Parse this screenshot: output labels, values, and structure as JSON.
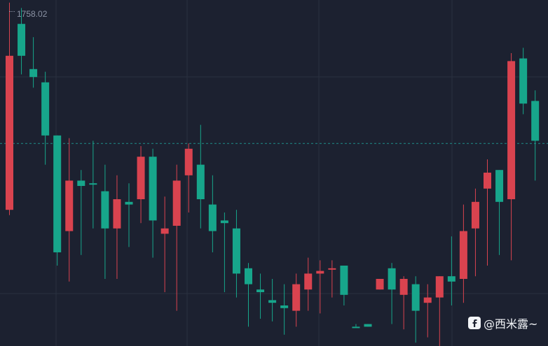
{
  "price_label": "1758.02",
  "watermark": "@西米露~",
  "colors": {
    "background": "#1c2130",
    "grid": "#2a3140",
    "up": "#17a68b",
    "down": "#d9434f",
    "reference_line": "#1f8f8a"
  },
  "chart_data": {
    "type": "candlestick",
    "y_axis": {
      "min": 1700,
      "max": 1760
    },
    "reference_price": 1735.5,
    "candles": [
      {
        "o": 1723,
        "h": 1762,
        "l": 1722,
        "c": 1752,
        "d": "down"
      },
      {
        "o": 1752,
        "h": 1761,
        "l": 1748.5,
        "c": 1758,
        "d": "up"
      },
      {
        "o": 1749.5,
        "h": 1755.5,
        "l": 1746,
        "c": 1748,
        "d": "up"
      },
      {
        "o": 1747,
        "h": 1749,
        "l": 1731.5,
        "c": 1737,
        "d": "up"
      },
      {
        "o": 1737,
        "h": 1737,
        "l": 1712.5,
        "c": 1715,
        "d": "up"
      },
      {
        "o": 1719,
        "h": 1736.5,
        "l": 1709.5,
        "c": 1728.5,
        "d": "down"
      },
      {
        "o": 1728.5,
        "h": 1730.5,
        "l": 1714.5,
        "c": 1727.5,
        "d": "up"
      },
      {
        "o": 1728,
        "h": 1736,
        "l": 1719.5,
        "c": 1728,
        "d": "up"
      },
      {
        "o": 1726.5,
        "h": 1731.5,
        "l": 1710,
        "c": 1719.5,
        "d": "up"
      },
      {
        "o": 1719.5,
        "h": 1729.5,
        "l": 1710,
        "c": 1725,
        "d": "down"
      },
      {
        "o": 1724.5,
        "h": 1728,
        "l": 1716,
        "c": 1724,
        "d": "up"
      },
      {
        "o": 1725,
        "h": 1735,
        "l": 1720.5,
        "c": 1733,
        "d": "down"
      },
      {
        "o": 1733,
        "h": 1734.5,
        "l": 1714,
        "c": 1721,
        "d": "up"
      },
      {
        "o": 1719.5,
        "h": 1725.5,
        "l": 1707.5,
        "c": 1718.5,
        "d": "down"
      },
      {
        "o": 1720,
        "h": 1731.5,
        "l": 1704,
        "c": 1728.5,
        "d": "down"
      },
      {
        "o": 1729.5,
        "h": 1735.5,
        "l": 1722.5,
        "c": 1734.5,
        "d": "down"
      },
      {
        "o": 1731.5,
        "h": 1739,
        "l": 1719.5,
        "c": 1725,
        "d": "up"
      },
      {
        "o": 1724,
        "h": 1729.5,
        "l": 1715,
        "c": 1719,
        "d": "up"
      },
      {
        "o": 1721,
        "h": 1722.5,
        "l": 1707.5,
        "c": 1720.5,
        "d": "up"
      },
      {
        "o": 1719.5,
        "h": 1723,
        "l": 1706.5,
        "c": 1711,
        "d": "up"
      },
      {
        "o": 1712,
        "h": 1713,
        "l": 1701,
        "c": 1709,
        "d": "up"
      },
      {
        "o": 1708,
        "h": 1711,
        "l": 1702.5,
        "c": 1707.5,
        "d": "up"
      },
      {
        "o": 1706,
        "h": 1710,
        "l": 1702,
        "c": 1705.5,
        "d": "up"
      },
      {
        "o": 1705,
        "h": 1709,
        "l": 1699.5,
        "c": 1704.5,
        "d": "up"
      },
      {
        "o": 1704,
        "h": 1711,
        "l": 1701,
        "c": 1709,
        "d": "down"
      },
      {
        "o": 1708,
        "h": 1714,
        "l": 1704,
        "c": 1711,
        "d": "down"
      },
      {
        "o": 1711,
        "h": 1713.5,
        "l": 1703.5,
        "c": 1711.5,
        "d": "down"
      },
      {
        "o": 1712,
        "h": 1713.5,
        "l": 1706.5,
        "c": 1712,
        "d": "down"
      },
      {
        "o": 1712.5,
        "h": 1712.5,
        "l": 1705,
        "c": 1707,
        "d": "up"
      },
      {
        "o": 1701,
        "h": 1701.5,
        "l": 1701,
        "c": 1701,
        "d": "up"
      },
      {
        "o": 1701.5,
        "h": 1701.5,
        "l": 1701,
        "c": 1701,
        "d": "up"
      },
      {
        "o": 1708,
        "h": 1710,
        "l": 1708,
        "c": 1710,
        "d": "down"
      },
      {
        "o": 1712,
        "h": 1713,
        "l": 1701.5,
        "c": 1708,
        "d": "up"
      },
      {
        "o": 1707,
        "h": 1710.5,
        "l": 1700.5,
        "c": 1710,
        "d": "down"
      },
      {
        "o": 1709,
        "h": 1710.5,
        "l": 1698,
        "c": 1704,
        "d": "up"
      },
      {
        "o": 1706.5,
        "h": 1709,
        "l": 1699,
        "c": 1705.5,
        "d": "down"
      },
      {
        "o": 1706.5,
        "h": 1710.5,
        "l": 1697,
        "c": 1710.5,
        "d": "down"
      },
      {
        "o": 1709.5,
        "h": 1718,
        "l": 1705,
        "c": 1710.5,
        "d": "up"
      },
      {
        "o": 1710,
        "h": 1724,
        "l": 1705.5,
        "c": 1719,
        "d": "down"
      },
      {
        "o": 1719.5,
        "h": 1727,
        "l": 1710.5,
        "c": 1724.5,
        "d": "down"
      },
      {
        "o": 1727,
        "h": 1732.5,
        "l": 1712.5,
        "c": 1730,
        "d": "down"
      },
      {
        "o": 1724.5,
        "h": 1730.5,
        "l": 1714.5,
        "c": 1730.5,
        "d": "up"
      },
      {
        "o": 1725,
        "h": 1752.5,
        "l": 1713.5,
        "c": 1751,
        "d": "down"
      },
      {
        "o": 1751.5,
        "h": 1753.5,
        "l": 1741,
        "c": 1743,
        "d": "up"
      },
      {
        "o": 1743.5,
        "h": 1745.5,
        "l": 1728.5,
        "c": 1736,
        "d": "up"
      }
    ]
  }
}
